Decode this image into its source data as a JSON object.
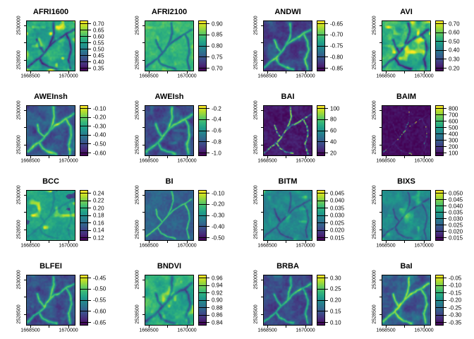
{
  "figure": {
    "background": "#ffffff",
    "colormap_name": "viridis",
    "colormap_hex": [
      "#440154",
      "#482878",
      "#3e4989",
      "#31688e",
      "#26828e",
      "#1f9e89",
      "#35b779",
      "#6ece58",
      "#b5de2b",
      "#fde725"
    ]
  },
  "chart_data": {
    "type": "heatmap",
    "title": "",
    "layout": {
      "rows": 4,
      "cols": 4,
      "legend_position": "right-of-each-panel",
      "grid": false
    },
    "shared_axes": {
      "x_tick_labels": [
        "1668500",
        "1670000"
      ],
      "y_tick_labels": [
        "2530000",
        "2528500"
      ],
      "x_label": "",
      "y_label": ""
    },
    "panels": [
      {
        "title": "AFRI1600",
        "legend_ticks": [
          "0.70",
          "0.65",
          "0.60",
          "0.55",
          "0.50",
          "0.45",
          "0.40",
          "0.35"
        ],
        "value_range": [
          0.33,
          0.72
        ],
        "appearance": {
          "mode": "dark",
          "base": 0.6,
          "amp": 0.16,
          "gain": 0.4,
          "width": 0.018,
          "spots": 0.3,
          "seed": 101
        }
      },
      {
        "title": "AFRI2100",
        "legend_ticks": [
          "0.90",
          "0.85",
          "0.80",
          "0.75",
          "0.70"
        ],
        "value_range": [
          0.68,
          0.92
        ],
        "appearance": {
          "mode": "dark",
          "base": 0.66,
          "amp": 0.1,
          "gain": 0.34,
          "width": 0.016,
          "spots": 0.12,
          "seed": 102
        }
      },
      {
        "title": "ANDWI",
        "legend_ticks": [
          "-0.65",
          "-0.70",
          "-0.75",
          "-0.80",
          "-0.85"
        ],
        "value_range": [
          -0.87,
          -0.62
        ],
        "appearance": {
          "mode": "bright",
          "base": 0.2,
          "amp": 0.13,
          "gain": 0.52,
          "width": 0.02,
          "spots": 0.1,
          "seed": 103
        }
      },
      {
        "title": "AVI",
        "legend_ticks": [
          "0.70",
          "0.60",
          "0.50",
          "0.40",
          "0.30",
          "0.20"
        ],
        "value_range": [
          0.15,
          0.72
        ],
        "appearance": {
          "mode": "dark",
          "base": 0.62,
          "amp": 0.2,
          "gain": 0.45,
          "width": 0.019,
          "spots": 0.3,
          "seed": 104
        }
      },
      {
        "title": "AWEInsh",
        "legend_ticks": [
          "-0.10",
          "-0.20",
          "-0.30",
          "-0.40",
          "-0.50",
          "-0.60"
        ],
        "value_range": [
          -0.65,
          -0.05
        ],
        "appearance": {
          "mode": "bright",
          "base": 0.26,
          "amp": 0.15,
          "gain": 0.5,
          "width": 0.022,
          "spots": 0.1,
          "seed": 105
        }
      },
      {
        "title": "AWEIsh",
        "legend_ticks": [
          "-0.2",
          "-0.4",
          "-0.6",
          "-0.8",
          "-1.0"
        ],
        "value_range": [
          -1.1,
          -0.1
        ],
        "appearance": {
          "mode": "bright",
          "base": 0.24,
          "amp": 0.15,
          "gain": 0.5,
          "width": 0.022,
          "spots": 0.1,
          "seed": 106
        }
      },
      {
        "title": "BAI",
        "legend_ticks": [
          "100",
          "80",
          "60",
          "40",
          "20"
        ],
        "value_range": [
          0,
          110
        ],
        "appearance": {
          "mode": "bright",
          "base": 0.07,
          "amp": 0.05,
          "gain": 0.85,
          "width": 0.01,
          "spots": 0,
          "sparkle": 0.35,
          "seed": 107
        }
      },
      {
        "title": "BAIM",
        "legend_ticks": [
          "800",
          "700",
          "600",
          "500",
          "400",
          "300",
          "200",
          "100"
        ],
        "value_range": [
          0,
          850
        ],
        "appearance": {
          "mode": "sparse",
          "base": 0.035,
          "amp": 0.025,
          "gain": 0.95,
          "width": 0.007,
          "spots": 0,
          "seed": 108
        }
      },
      {
        "title": "BCC",
        "legend_ticks": [
          "0.24",
          "0.22",
          "0.20",
          "0.18",
          "0.16",
          "0.14",
          "0.12"
        ],
        "value_range": [
          0.11,
          0.25
        ],
        "appearance": {
          "mode": "dark",
          "base": 0.58,
          "amp": 0.09,
          "gain": 0.12,
          "width": 0.015,
          "spots": 0.3,
          "darkspots": 0.35,
          "seed": 109
        }
      },
      {
        "title": "BI",
        "legend_ticks": [
          "-0.10",
          "-0.20",
          "-0.30",
          "-0.40",
          "-0.50"
        ],
        "value_range": [
          -0.55,
          -0.05
        ],
        "appearance": {
          "mode": "bright",
          "base": 0.31,
          "amp": 0.09,
          "gain": 0.45,
          "width": 0.012,
          "spots": 0,
          "seed": 110
        }
      },
      {
        "title": "BITM",
        "legend_ticks": [
          "0.045",
          "0.040",
          "0.035",
          "0.030",
          "0.025",
          "0.020",
          "0.015"
        ],
        "value_range": [
          0.012,
          0.047
        ],
        "appearance": {
          "mode": "dark",
          "base": 0.47,
          "amp": 0.12,
          "gain": 0.22,
          "width": 0.014,
          "spots": 0.22,
          "seed": 111
        }
      },
      {
        "title": "BIXS",
        "legend_ticks": [
          "0.050",
          "0.045",
          "0.040",
          "0.035",
          "0.030",
          "0.025",
          "0.020",
          "0.015"
        ],
        "value_range": [
          0.012,
          0.052
        ],
        "appearance": {
          "mode": "dark",
          "base": 0.47,
          "amp": 0.12,
          "gain": 0.22,
          "width": 0.014,
          "spots": 0.22,
          "seed": 112
        }
      },
      {
        "title": "BLFEI",
        "legend_ticks": [
          "-0.45",
          "-0.50",
          "-0.55",
          "-0.60",
          "-0.65"
        ],
        "value_range": [
          -0.68,
          -0.42
        ],
        "appearance": {
          "mode": "bright",
          "base": 0.23,
          "amp": 0.14,
          "gain": 0.48,
          "width": 0.02,
          "spots": 0.1,
          "seed": 113
        }
      },
      {
        "title": "BNDVI",
        "legend_ticks": [
          "0.96",
          "0.94",
          "0.92",
          "0.90",
          "0.88",
          "0.86",
          "0.84"
        ],
        "value_range": [
          0.83,
          0.97
        ],
        "appearance": {
          "mode": "dark",
          "base": 0.62,
          "amp": 0.17,
          "gain": 0.33,
          "width": 0.021,
          "spots": 0.22,
          "seed": 114
        }
      },
      {
        "title": "BRBA",
        "legend_ticks": [
          "0.30",
          "0.25",
          "0.20",
          "0.15",
          "0.10"
        ],
        "value_range": [
          0.07,
          0.32
        ],
        "appearance": {
          "mode": "bright",
          "base": 0.21,
          "amp": 0.13,
          "gain": 0.45,
          "width": 0.017,
          "spots": 0.08,
          "seed": 115
        }
      },
      {
        "title": "BaI",
        "legend_ticks": [
          "-0.05",
          "-0.10",
          "-0.15",
          "-0.20",
          "-0.25",
          "-0.30",
          "-0.35"
        ],
        "value_range": [
          -0.38,
          -0.02
        ],
        "appearance": {
          "mode": "bright",
          "base": 0.28,
          "amp": 0.15,
          "gain": 0.52,
          "width": 0.022,
          "spots": 0.1,
          "seed": 116
        }
      }
    ]
  }
}
